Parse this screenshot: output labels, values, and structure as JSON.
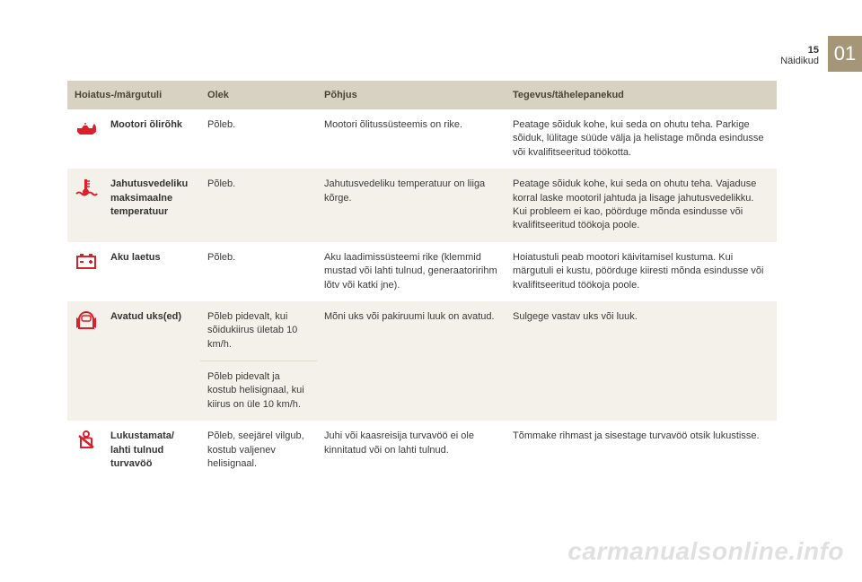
{
  "pageNumber": "15",
  "section": "Näidikud",
  "chapter": "01",
  "watermark": "carmanualsonline.info",
  "colors": {
    "header_bg": "#d8d2c3",
    "header_text": "#4a4433",
    "row_alt_bg": "#f4f1ea",
    "icon_color": "#d9202b",
    "tab_bg": "#a59678"
  },
  "columns": {
    "c1": "Hoiatus-/märgutuli",
    "c2": "Olek",
    "c3": "Põhjus",
    "c4": "Tegevus/tähelepanekud"
  },
  "rows": [
    {
      "icon": "oil",
      "label": "Mootori õlirõhk",
      "states": [
        {
          "state": "Põleb.",
          "cause": "Mootori õlitussüsteemis on rike.",
          "action": "Peatage sõiduk kohe, kui seda on ohutu teha. Parkige sõiduk, lülitage süüde välja ja helistage mõnda esindusse või kvalifitseeritud töökotta."
        }
      ]
    },
    {
      "icon": "temp",
      "label": "Jahutusvedeliku maksimaalne temperatuur",
      "states": [
        {
          "state": "Põleb.",
          "cause": "Jahutusvedeliku temperatuur on liiga kõrge.",
          "action": "Peatage sõiduk kohe, kui seda on ohutu teha. Vajaduse korral laske mootoril jahtuda ja lisage jahutusvedelikku. Kui probleem ei kao, pöörduge mõnda esindusse või kvalifitseeritud töökoja poole."
        }
      ]
    },
    {
      "icon": "battery",
      "label": "Aku laetus",
      "states": [
        {
          "state": "Põleb.",
          "cause": "Aku laadimissüsteemi rike (klemmid mustad või lahti tulnud, generaatoririhm lõtv või katki jne).",
          "action": "Hoiatustuli peab mootori käivitamisel kustuma. Kui märgutuli ei kustu, pöörduge kiiresti mõnda esindusse või kvalifitseeritud töökoja poole."
        }
      ]
    },
    {
      "icon": "door",
      "label": "Avatud uks(ed)",
      "states": [
        {
          "state": "Põleb pidevalt, kui sõidukiirus ületab 10 km/h.",
          "cause": "Mõni uks või pakiruumi luuk on avatud.",
          "action": "Sulgege vastav uks või luuk."
        },
        {
          "state": "Põleb pidevalt ja kostub helisignaal, kui kiirus on üle 10 km/h.",
          "cause": "",
          "action": ""
        }
      ]
    },
    {
      "icon": "seatbelt",
      "label": "Lukustamata/ lahti tulnud turvavöö",
      "states": [
        {
          "state": "Põleb, seejärel vilgub, kostub valjenev helisignaal.",
          "cause": "Juhi või kaasreisija turvavöö ei ole kinnitatud või on lahti tulnud.",
          "action": "Tõmmake rihmast ja sisestage turvavöö otsik lukustisse."
        }
      ]
    }
  ]
}
